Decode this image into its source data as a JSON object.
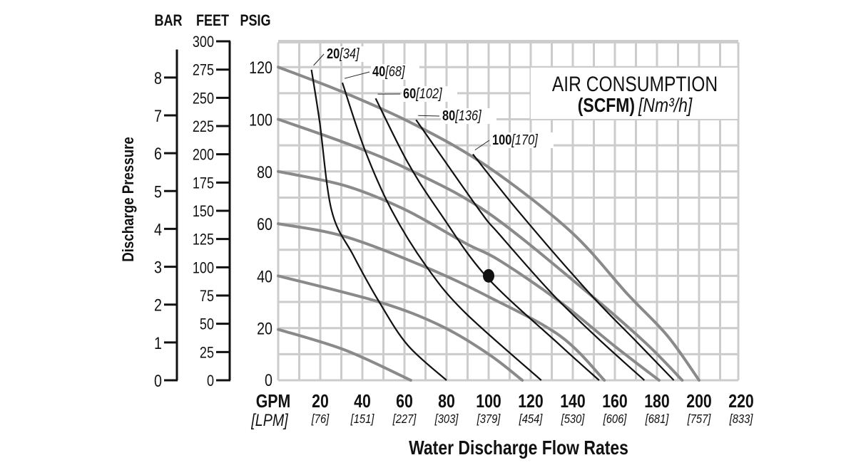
{
  "chart_data": {
    "type": "line",
    "colors": {
      "head_curve": "#8a8a8a",
      "air_curve": "#111111",
      "grid": "#cccccc"
    },
    "y_axis_headers": {
      "bar": "BAR",
      "feet": "FEET",
      "psig": "PSIG"
    },
    "ylabel": "Discharge Pressure",
    "xlabel": "Water Discharge Flow Rates",
    "x_unit": "GPM",
    "x_unit_alt": "[LPM]",
    "xlim": [
      0,
      218
    ],
    "ylim": [
      0,
      130
    ],
    "grid": true,
    "x_ticks": [
      {
        "gpm": 20,
        "label": "20",
        "lpm": "[76]"
      },
      {
        "gpm": 40,
        "label": "40",
        "lpm": "[151]"
      },
      {
        "gpm": 60,
        "label": "60",
        "lpm": "[227]"
      },
      {
        "gpm": 80,
        "label": "80",
        "lpm": "[303]"
      },
      {
        "gpm": 100,
        "label": "100",
        "lpm": "[379]"
      },
      {
        "gpm": 120,
        "label": "120",
        "lpm": "[454]"
      },
      {
        "gpm": 140,
        "label": "140",
        "lpm": "[530]"
      },
      {
        "gpm": 160,
        "label": "160",
        "lpm": "[606]"
      },
      {
        "gpm": 180,
        "label": "180",
        "lpm": "[681]"
      },
      {
        "gpm": 200,
        "label": "200",
        "lpm": "[757]"
      },
      {
        "gpm": 220,
        "label": "220",
        "lpm": "[833]"
      }
    ],
    "psig_ticks": [
      "0",
      "20",
      "40",
      "60",
      "80",
      "100",
      "120"
    ],
    "bar_ticks": [
      "0",
      "1",
      "2",
      "3",
      "4",
      "5",
      "6",
      "7",
      "8"
    ],
    "feet_ticks": [
      "0",
      "25",
      "50",
      "75",
      "100",
      "125",
      "150",
      "175",
      "200",
      "225",
      "250",
      "275",
      "300"
    ],
    "legend_title": "AIR CONSUMPTION",
    "legend_units_bold": "(SCFM)",
    "legend_units_metric": "[Nm³/h]",
    "head_curves": [
      {
        "air_psig": 120,
        "points": [
          [
            0,
            120
          ],
          [
            32,
            110
          ],
          [
            66,
            97.5
          ],
          [
            100,
            81.6
          ],
          [
            139,
            57
          ],
          [
            166,
            33
          ],
          [
            185,
            17
          ],
          [
            200,
            0
          ]
        ]
      },
      {
        "air_psig": 100,
        "points": [
          [
            0,
            100
          ],
          [
            35,
            90
          ],
          [
            64,
            80
          ],
          [
            100,
            64
          ],
          [
            148,
            33
          ],
          [
            175,
            14
          ],
          [
            192,
            0
          ]
        ]
      },
      {
        "air_psig": 80,
        "points": [
          [
            0,
            80
          ],
          [
            32,
            74.5
          ],
          [
            60,
            65.5
          ],
          [
            89,
            52.5
          ],
          [
            105,
            46
          ],
          [
            134,
            30
          ],
          [
            160,
            13
          ],
          [
            181,
            0
          ]
        ]
      },
      {
        "air_psig": 60,
        "points": [
          [
            0,
            60
          ],
          [
            32,
            55
          ],
          [
            71,
            43
          ],
          [
            100,
            32
          ],
          [
            134,
            17
          ],
          [
            155,
            0
          ]
        ]
      },
      {
        "air_psig": 40,
        "points": [
          [
            0,
            40
          ],
          [
            48,
            30
          ],
          [
            77,
            21
          ],
          [
            100,
            10
          ],
          [
            116,
            0
          ]
        ]
      },
      {
        "air_psig": 20,
        "points": [
          [
            0,
            19.5
          ],
          [
            32,
            11.5
          ],
          [
            63,
            0
          ]
        ]
      }
    ],
    "air_curves": [
      {
        "label": "20",
        "metric": "[34]",
        "points": [
          [
            15.8,
            119
          ],
          [
            19.7,
            99
          ],
          [
            25.4,
            65
          ],
          [
            35.6,
            48
          ],
          [
            48,
            30
          ],
          [
            61.6,
            13.4
          ],
          [
            80,
            0
          ]
        ]
      },
      {
        "label": "40",
        "metric": "[68]",
        "points": [
          [
            30.5,
            114
          ],
          [
            41.3,
            88
          ],
          [
            54,
            65
          ],
          [
            70.6,
            43.4
          ],
          [
            88.7,
            26
          ],
          [
            125,
            0
          ]
        ]
      },
      {
        "label": "60",
        "metric": "[102]",
        "points": [
          [
            46.3,
            108
          ],
          [
            61.6,
            83.4
          ],
          [
            77,
            64
          ],
          [
            99.2,
            39.5
          ],
          [
            134,
            13.4
          ],
          [
            152.5,
            0
          ]
        ]
      },
      {
        "label": "80",
        "metric": "[136]",
        "points": [
          [
            65.5,
            99.8
          ],
          [
            95.5,
            65.3
          ],
          [
            105,
            56
          ],
          [
            130,
            33.3
          ],
          [
            152,
            16
          ],
          [
            174,
            0
          ]
        ]
      },
      {
        "label": "100",
        "metric": "[170]",
        "points": [
          [
            92.5,
            86.6
          ],
          [
            114.6,
            64.3
          ],
          [
            148,
            33.3
          ],
          [
            170,
            15
          ],
          [
            188,
            0
          ]
        ]
      }
    ],
    "marked_point": {
      "gpm": 100,
      "psig": 40
    }
  }
}
